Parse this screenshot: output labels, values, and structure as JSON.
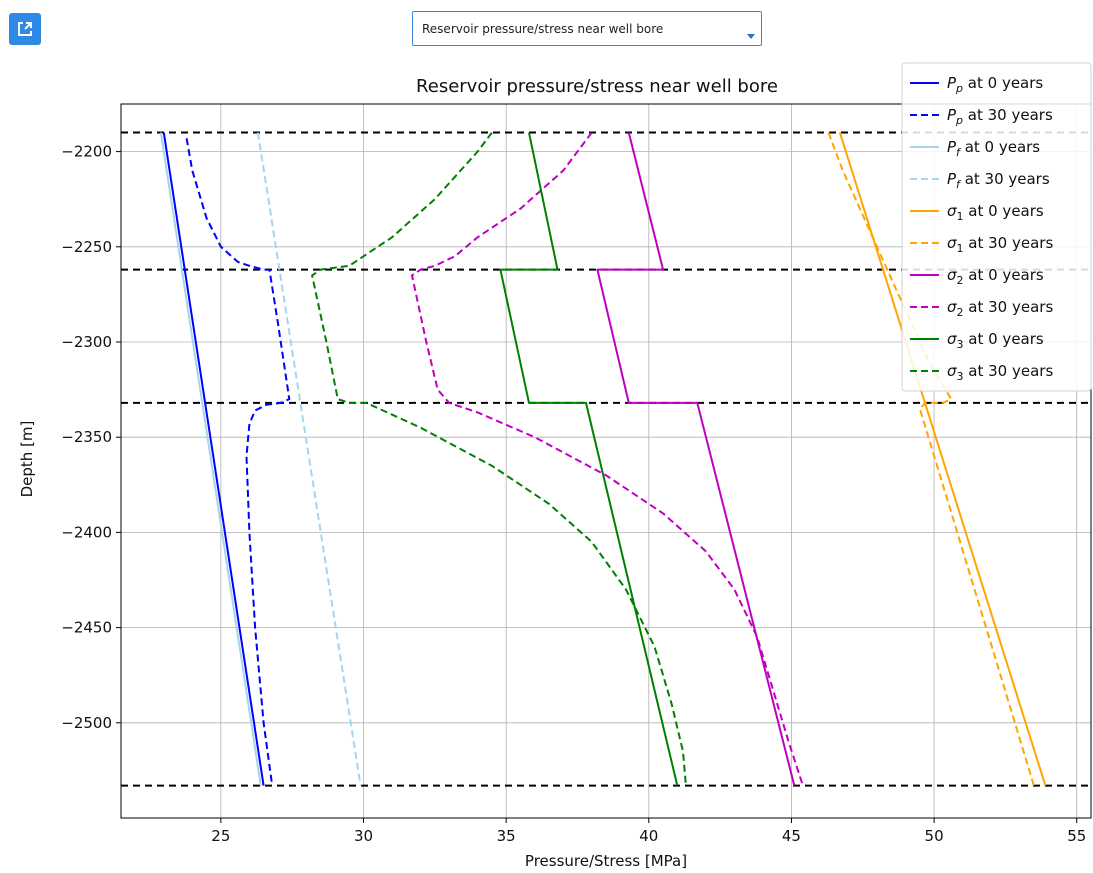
{
  "toolbar": {
    "open_icon": "external-link-icon",
    "select_value": "Reservoir pressure/stress near well bore"
  },
  "chart_data": {
    "type": "line",
    "title": "Reservoir pressure/stress near well bore",
    "xlabel": "Pressure/Stress [MPa]",
    "ylabel": "Depth [m]",
    "xlim": [
      21.5,
      55.5
    ],
    "ylim": [
      -2550,
      -2175
    ],
    "xticks": [
      25,
      30,
      35,
      40,
      45,
      50,
      55
    ],
    "yticks": [
      -2200,
      -2250,
      -2300,
      -2350,
      -2400,
      -2450,
      -2500
    ],
    "grid": true,
    "legend_position": "top-right",
    "hlines": [
      -2190,
      -2262,
      -2332,
      -2533
    ],
    "series": [
      {
        "name": "P_p at 0 years",
        "color": "#0000ff",
        "dash": false,
        "points": [
          [
            23.0,
            -2190
          ],
          [
            26.5,
            -2533
          ]
        ]
      },
      {
        "name": "P_p at 30 years",
        "color": "#0000ff",
        "dash": true,
        "points": [
          [
            23.8,
            -2193
          ],
          [
            24.0,
            -2210
          ],
          [
            24.5,
            -2235
          ],
          [
            25.0,
            -2250
          ],
          [
            25.6,
            -2258
          ],
          [
            26.0,
            -2260
          ],
          [
            26.5,
            -2262
          ],
          [
            26.7,
            -2262
          ],
          [
            27.0,
            -2290
          ],
          [
            27.4,
            -2330
          ],
          [
            27.1,
            -2332
          ],
          [
            26.6,
            -2333
          ],
          [
            26.2,
            -2336
          ],
          [
            26.0,
            -2343
          ],
          [
            25.9,
            -2360
          ],
          [
            26.0,
            -2400
          ],
          [
            26.2,
            -2450
          ],
          [
            26.5,
            -2500
          ],
          [
            26.8,
            -2533
          ]
        ]
      },
      {
        "name": "P_f at 0 years",
        "color": "#a6d4ec",
        "dash": false,
        "points": [
          [
            22.9,
            -2190
          ],
          [
            26.4,
            -2533
          ]
        ]
      },
      {
        "name": "P_f at 30 years",
        "color": "#a6d4ec",
        "dash": true,
        "points": [
          [
            26.3,
            -2190
          ],
          [
            29.9,
            -2533
          ]
        ]
      },
      {
        "name": "σ1 at 0 years",
        "color": "#ffa500",
        "dash": false,
        "points": [
          [
            46.7,
            -2190
          ],
          [
            53.9,
            -2533
          ]
        ]
      },
      {
        "name": "σ1 at 30 years",
        "color": "#ffa500",
        "dash": true,
        "points": [
          [
            46.3,
            -2190
          ],
          [
            46.8,
            -2210
          ],
          [
            47.4,
            -2230
          ],
          [
            48.0,
            -2250
          ],
          [
            48.6,
            -2270
          ],
          [
            49.2,
            -2290
          ],
          [
            49.8,
            -2310
          ],
          [
            50.4,
            -2325
          ],
          [
            50.6,
            -2330
          ],
          [
            50.3,
            -2332
          ],
          [
            49.7,
            -2332
          ],
          [
            49.5,
            -2335
          ],
          [
            53.5,
            -2533
          ]
        ]
      },
      {
        "name": "σ2 at 0 years",
        "color": "#c000c0",
        "dash": false,
        "points": [
          [
            39.3,
            -2190
          ],
          [
            40.5,
            -2262
          ],
          [
            38.2,
            -2262
          ],
          [
            39.3,
            -2332
          ],
          [
            41.7,
            -2332
          ],
          [
            45.1,
            -2533
          ]
        ]
      },
      {
        "name": "σ2 at 30 years",
        "color": "#c000c0",
        "dash": true,
        "points": [
          [
            38.0,
            -2190
          ],
          [
            37.0,
            -2210
          ],
          [
            35.5,
            -2230
          ],
          [
            34.0,
            -2245
          ],
          [
            33.2,
            -2255
          ],
          [
            32.5,
            -2260
          ],
          [
            32.0,
            -2262
          ],
          [
            31.7,
            -2265
          ],
          [
            32.2,
            -2300
          ],
          [
            32.6,
            -2325
          ],
          [
            33.0,
            -2332
          ],
          [
            34.0,
            -2337
          ],
          [
            36.0,
            -2350
          ],
          [
            38.5,
            -2370
          ],
          [
            40.5,
            -2390
          ],
          [
            42.0,
            -2410
          ],
          [
            43.0,
            -2430
          ],
          [
            43.8,
            -2455
          ],
          [
            44.3,
            -2480
          ],
          [
            44.9,
            -2510
          ],
          [
            45.4,
            -2533
          ]
        ]
      },
      {
        "name": "σ3 at 0 years",
        "color": "#008000",
        "dash": false,
        "points": [
          [
            35.8,
            -2190
          ],
          [
            36.8,
            -2262
          ],
          [
            34.8,
            -2262
          ],
          [
            35.8,
            -2332
          ],
          [
            37.8,
            -2332
          ],
          [
            41.0,
            -2533
          ]
        ]
      },
      {
        "name": "σ3 at 30 years",
        "color": "#008000",
        "dash": true,
        "points": [
          [
            34.5,
            -2190
          ],
          [
            34.0,
            -2200
          ],
          [
            32.5,
            -2225
          ],
          [
            31.0,
            -2245
          ],
          [
            30.0,
            -2255
          ],
          [
            29.5,
            -2260
          ],
          [
            28.5,
            -2262
          ],
          [
            28.2,
            -2265
          ],
          [
            28.7,
            -2300
          ],
          [
            29.1,
            -2330
          ],
          [
            29.5,
            -2332
          ],
          [
            30.1,
            -2332
          ],
          [
            32.0,
            -2345
          ],
          [
            34.5,
            -2365
          ],
          [
            36.5,
            -2385
          ],
          [
            38.0,
            -2405
          ],
          [
            39.2,
            -2430
          ],
          [
            40.2,
            -2460
          ],
          [
            40.8,
            -2490
          ],
          [
            41.2,
            -2515
          ],
          [
            41.3,
            -2533
          ]
        ]
      }
    ]
  }
}
